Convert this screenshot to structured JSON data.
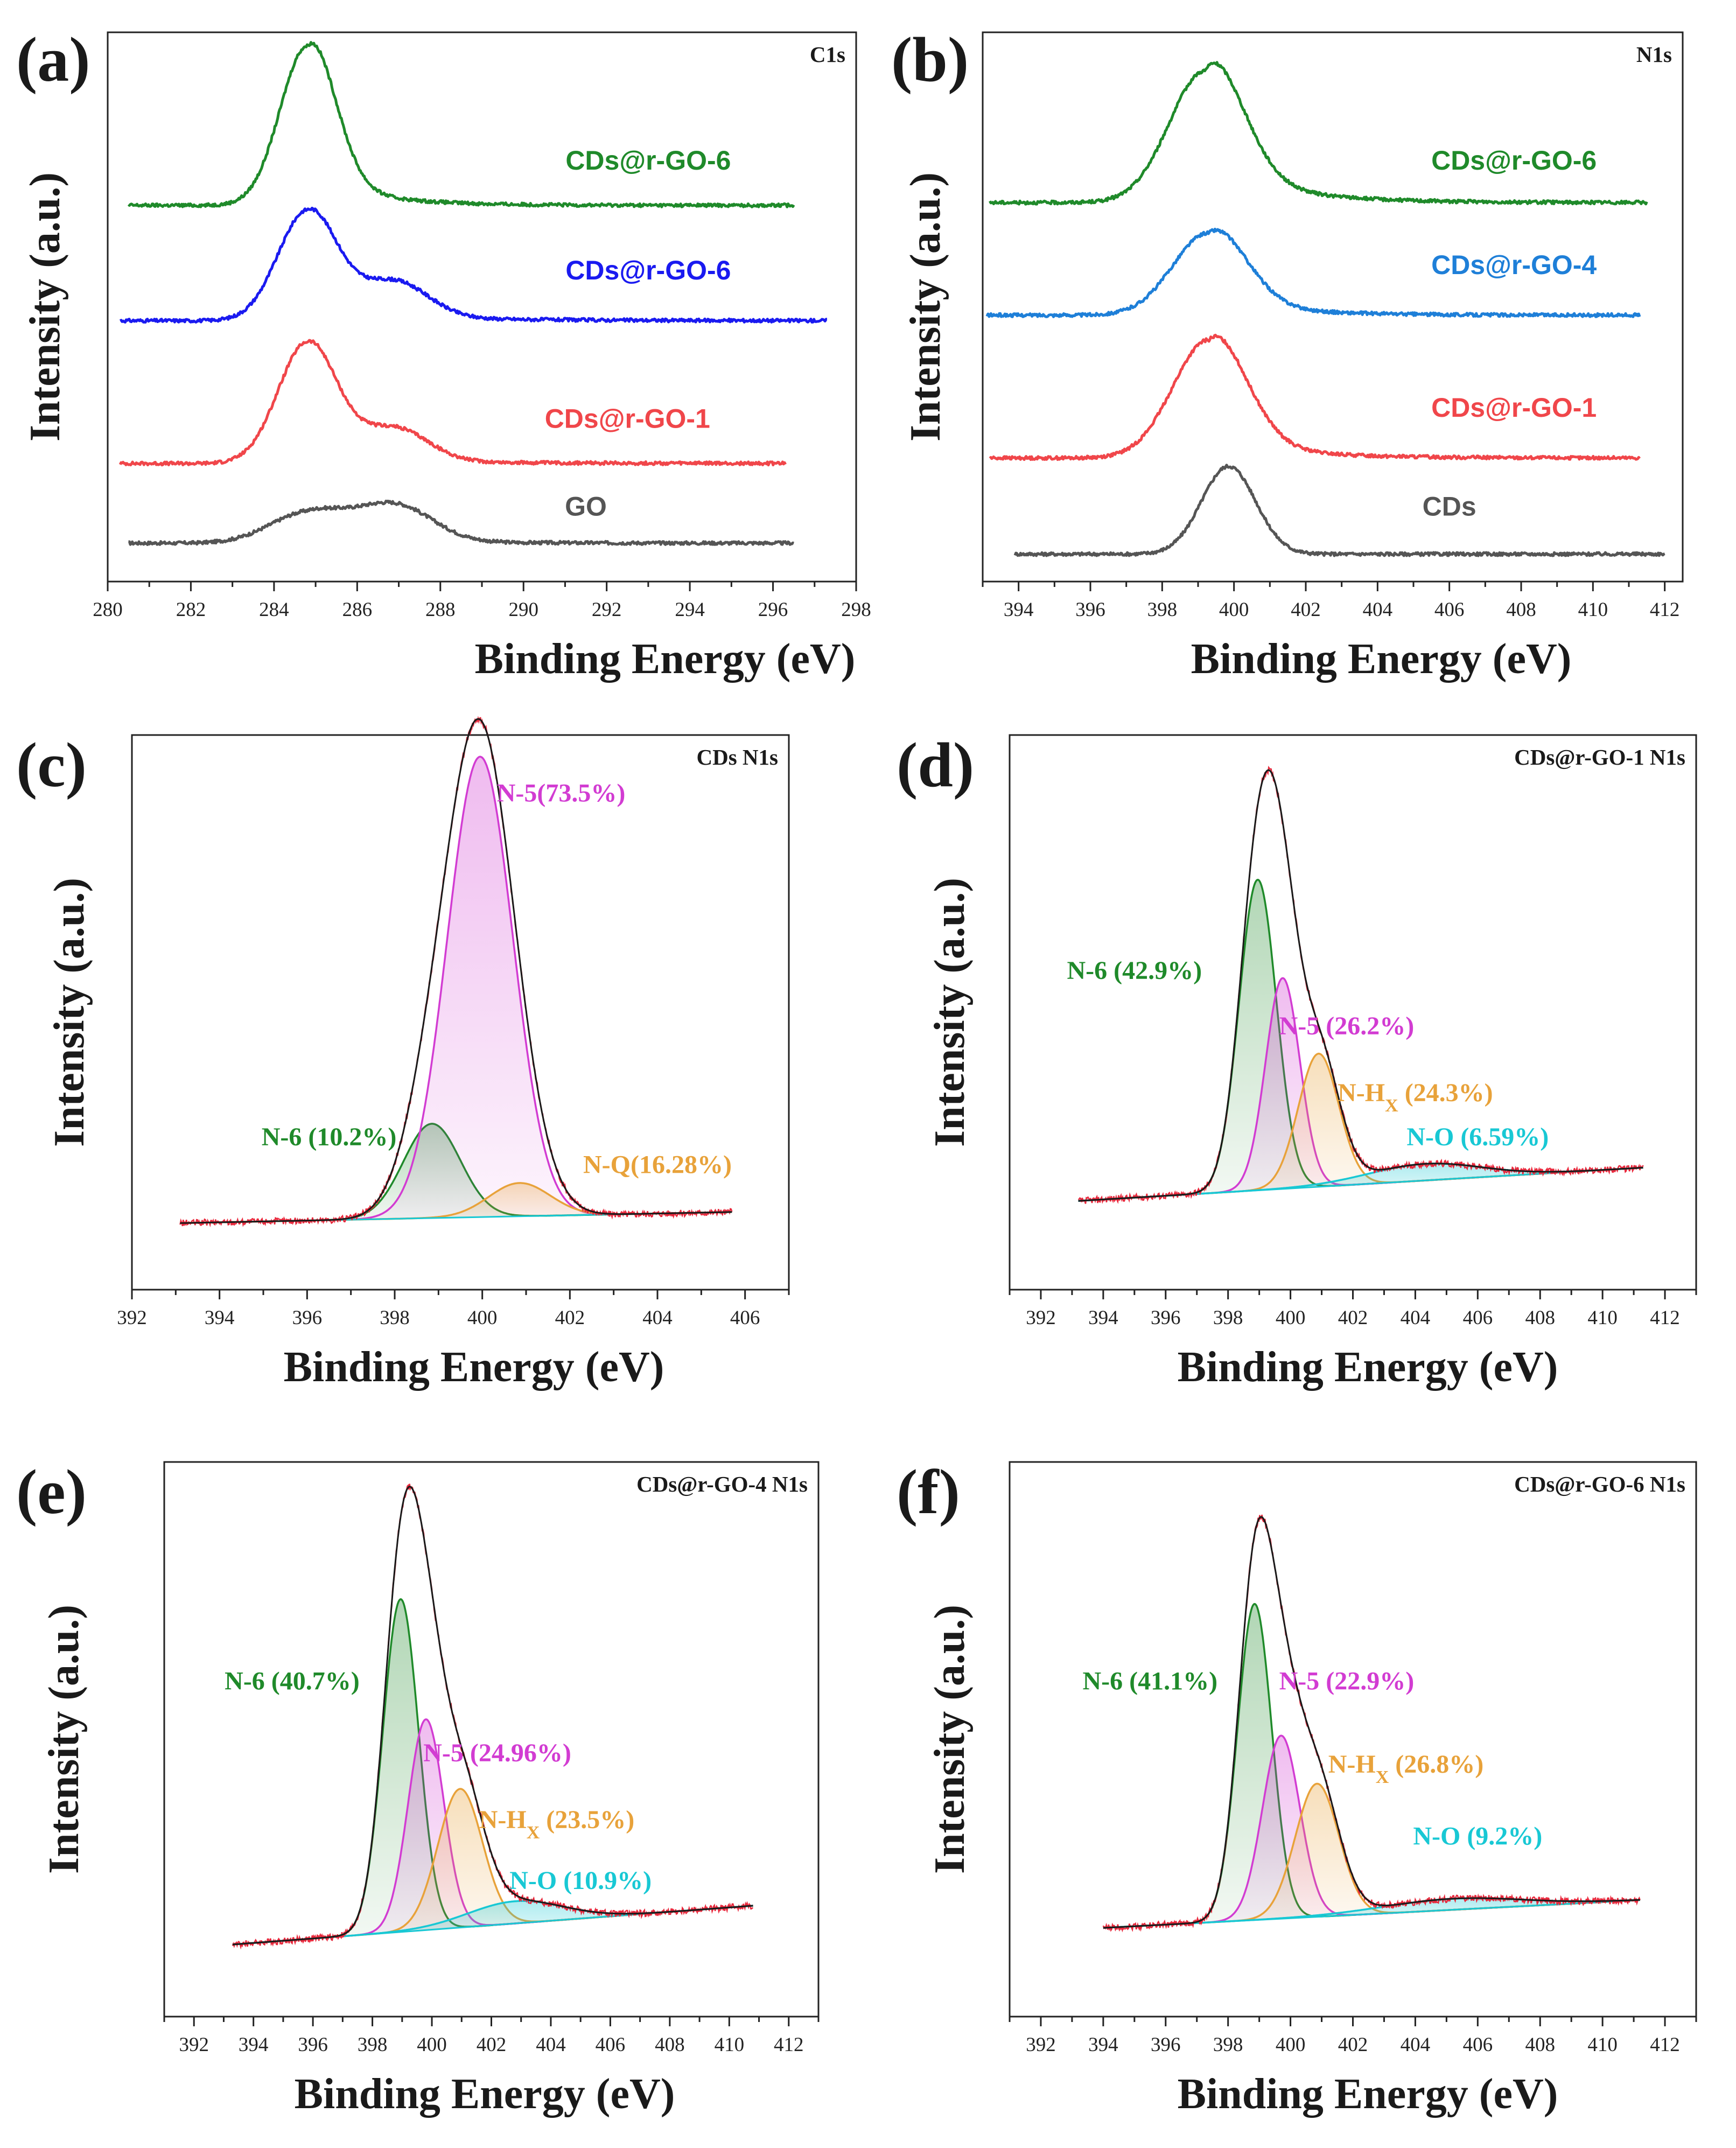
{
  "figure": {
    "x_axis_title": "Binding Energy (eV)",
    "y_axis_title": "Intensity (a.u.)"
  },
  "colors": {
    "green": "#1f8a2a",
    "blue": "#1a1af0",
    "red": "#f0464a",
    "gray": "#555555",
    "sky": "#1e7fd8",
    "pink": "#d23cd2",
    "orange": "#e8a23a",
    "cyan": "#18c8d4",
    "envelope": "#1a1a1a",
    "raw": "#e8283c"
  },
  "chart_data": [
    {
      "panel": "(a)",
      "type": "line",
      "title": "C1s",
      "xlabel": "Binding Energy (eV)",
      "ylabel": "Intensity (a.u.)",
      "xlim": [
        280,
        298
      ],
      "xticks": [
        280,
        282,
        284,
        286,
        288,
        290,
        292,
        294,
        296,
        298
      ],
      "y_units": "arbitrary, vertically offset stack (0 = panel bottom, 100 = panel top)",
      "series": [
        {
          "name": "GO",
          "color": "gray",
          "x_range": [
            280.5,
            296.5
          ],
          "baseline": 7,
          "label_at": [
            291.5,
            12
          ],
          "peaks": [
            {
              "center": 284.8,
              "height": 5.5,
              "width": 0.9
            },
            {
              "center": 286.9,
              "height": 6.7,
              "width": 0.9
            }
          ],
          "tail": 0.7
        },
        {
          "name": "CDs@r-GO-1",
          "color": "red",
          "x_range": [
            280.3,
            296.3
          ],
          "baseline": 21.5,
          "label_at": [
            292.5,
            28
          ],
          "peaks": [
            {
              "center": 284.8,
              "height": 22,
              "width": 0.7
            },
            {
              "center": 286.9,
              "height": 6,
              "width": 0.8
            }
          ],
          "tail": 1.2
        },
        {
          "name": "CDs@r-GO-6",
          "color": "blue",
          "x_range": [
            280.3,
            297.3
          ],
          "baseline": 47.5,
          "label_at": [
            293,
            55
          ],
          "peaks": [
            {
              "center": 284.8,
              "height": 20,
              "width": 0.7
            },
            {
              "center": 286.9,
              "height": 6.5,
              "width": 0.8
            }
          ],
          "tail": 1.8
        },
        {
          "name": "CDs@r-GO-6",
          "color": "green",
          "x_range": [
            280.5,
            296.5
          ],
          "baseline": 68.5,
          "label_at": [
            293,
            75
          ],
          "peaks": [
            {
              "center": 284.8,
              "height": 29,
              "width": 0.65
            }
          ],
          "tail": 6,
          "tail_decay": 1.4
        }
      ]
    },
    {
      "panel": "(b)",
      "type": "line",
      "title": "N1s",
      "xlabel": "Binding Energy (eV)",
      "ylabel": "Intensity (a.u.)",
      "xlim": [
        393,
        412.5
      ],
      "xticks": [
        394,
        396,
        398,
        400,
        402,
        404,
        406,
        408,
        410,
        412
      ],
      "y_units": "arbitrary, vertically offset stack (0 = panel bottom, 100 = panel top)",
      "series": [
        {
          "name": "CDs",
          "color": "gray",
          "x_range": [
            393.9,
            412
          ],
          "baseline": 5,
          "label_at": [
            406,
            12
          ],
          "peaks": [
            {
              "center": 399.85,
              "height": 16,
              "width": 0.75
            }
          ],
          "tail": 0
        },
        {
          "name": "CDs@r-GO-1",
          "color": "red",
          "x_range": [
            393.2,
            411.3
          ],
          "baseline": 22.5,
          "label_at": [
            407.8,
            30
          ],
          "peaks": [
            {
              "center": 399.3,
              "height": 21.5,
              "width": 1.0
            }
          ],
          "tail": 4,
          "tail_decay": 2.0
        },
        {
          "name": "CDs@r-GO-4",
          "color": "sky",
          "x_range": [
            393.1,
            411.3
          ],
          "baseline": 48.5,
          "label_at": [
            407.8,
            56
          ],
          "peaks": [
            {
              "center": 399.3,
              "height": 15,
              "width": 1.0
            }
          ],
          "tail": 3,
          "tail_decay": 2.0
        },
        {
          "name": "CDs@r-GO-6",
          "color": "green",
          "x_range": [
            393.2,
            411.5
          ],
          "baseline": 69,
          "label_at": [
            407.8,
            75
          ],
          "peaks": [
            {
              "center": 399.2,
              "height": 24,
              "width": 1.0
            }
          ],
          "tail": 7,
          "tail_decay": 2.0
        }
      ]
    },
    {
      "panel": "(c)",
      "type": "line",
      "title": "CDs N1s",
      "xlabel": "Binding Energy (eV)",
      "ylabel": "Intensity (a.u.)",
      "xlim": [
        392,
        407
      ],
      "xticks": [
        392,
        394,
        396,
        398,
        400,
        402,
        404,
        406
      ],
      "y_units": "arbitrary (0 = panel bottom, 100 = panel top)",
      "x_range": [
        393.1,
        405.7
      ],
      "background": [
        393.1,
        12,
        405.7,
        14
      ],
      "components": [
        {
          "name": "N-6 (10.2%)",
          "color": "green",
          "center": 398.85,
          "height": 17,
          "width": 0.65,
          "label_at": [
            396.5,
            26
          ]
        },
        {
          "name": "N-5(73.5%)",
          "color": "pink",
          "center": 399.95,
          "height": 83,
          "width": 0.75,
          "label_at": [
            401.8,
            88
          ]
        },
        {
          "name": "N-Q(16.28%)",
          "color": "orange",
          "center": 400.85,
          "height": 6,
          "width": 0.7,
          "label_at": [
            404,
            21
          ]
        }
      ]
    },
    {
      "panel": "(d)",
      "type": "line",
      "title": "CDs@r-GO-1 N1s",
      "xlabel": "Binding Energy (eV)",
      "ylabel": "Intensity (a.u.)",
      "xlim": [
        391,
        413
      ],
      "xticks": [
        392,
        394,
        396,
        398,
        400,
        402,
        404,
        406,
        408,
        410,
        412
      ],
      "y_units": "arbitrary (0 = panel bottom, 100 = panel top)",
      "x_range": [
        393.2,
        411.3
      ],
      "background": [
        393.2,
        16,
        411.3,
        22
      ],
      "components": [
        {
          "name": "N-6 (42.9%)",
          "color": "green",
          "center": 398.95,
          "height": 56,
          "width": 0.6,
          "label_at": [
            395,
            56
          ]
        },
        {
          "name": "N-5 (26.2%)",
          "color": "pink",
          "center": 399.75,
          "height": 38,
          "width": 0.55,
          "label_at": [
            401.8,
            46
          ]
        },
        {
          "name": "N-HX (24.3%)",
          "color": "orange",
          "center": 400.9,
          "height": 24,
          "width": 0.65,
          "label_at": [
            404,
            34
          ]
        },
        {
          "name": "N-O (6.59%)",
          "color": "cyan",
          "center": 404.3,
          "height": 3,
          "width": 1.8,
          "label_at": [
            406,
            26
          ]
        }
      ]
    },
    {
      "panel": "(e)",
      "type": "line",
      "title": "CDs@r-GO-4 N1s",
      "xlabel": "Binding Energy (eV)",
      "ylabel": "Intensity (a.u.)",
      "xlim": [
        391,
        413
      ],
      "xticks": [
        392,
        394,
        396,
        398,
        400,
        402,
        404,
        406,
        408,
        410,
        412
      ],
      "y_units": "arbitrary (0 = panel bottom, 100 = panel top)",
      "x_range": [
        393.3,
        410.8
      ],
      "background": [
        393.3,
        13,
        410.8,
        20
      ],
      "components": [
        {
          "name": "N-6 (40.7%)",
          "color": "green",
          "center": 398.95,
          "height": 60,
          "width": 0.6,
          "label_at": [
            395.3,
            59
          ]
        },
        {
          "name": "N-5 (24.96%)",
          "color": "pink",
          "center": 399.8,
          "height": 38,
          "width": 0.6,
          "label_at": [
            402.2,
            46
          ]
        },
        {
          "name": "N-HX (23.5%)",
          "color": "orange",
          "center": 400.95,
          "height": 25,
          "width": 0.75,
          "label_at": [
            404.2,
            34
          ]
        },
        {
          "name": "N-O (10.9%)",
          "color": "cyan",
          "center": 402.8,
          "height": 4,
          "width": 1.6,
          "label_at": [
            405,
            23
          ]
        }
      ]
    },
    {
      "panel": "(f)",
      "type": "line",
      "title": "CDs@r-GO-6 N1s",
      "xlabel": "Binding Energy (eV)",
      "ylabel": "Intensity (a.u.)",
      "xlim": [
        391,
        413
      ],
      "xticks": [
        392,
        394,
        396,
        398,
        400,
        402,
        404,
        406,
        408,
        410,
        412
      ],
      "y_units": "arbitrary (0 = panel bottom, 100 = panel top)",
      "x_range": [
        394,
        411.2
      ],
      "background": [
        394,
        16,
        411.2,
        21
      ],
      "components": [
        {
          "name": "N-6 (41.1%)",
          "color": "green",
          "center": 398.85,
          "height": 57,
          "width": 0.55,
          "label_at": [
            395.5,
            59
          ]
        },
        {
          "name": "N-5 (22.9%)",
          "color": "pink",
          "center": 399.7,
          "height": 33,
          "width": 0.6,
          "label_at": [
            401.8,
            59
          ]
        },
        {
          "name": "N-HX (26.8%)",
          "color": "orange",
          "center": 400.85,
          "height": 24,
          "width": 0.7,
          "label_at": [
            403.7,
            44
          ]
        },
        {
          "name": "N-O (9.2%)",
          "color": "cyan",
          "center": 405.2,
          "height": 2,
          "width": 2.2,
          "label_at": [
            406,
            31
          ]
        }
      ]
    }
  ]
}
